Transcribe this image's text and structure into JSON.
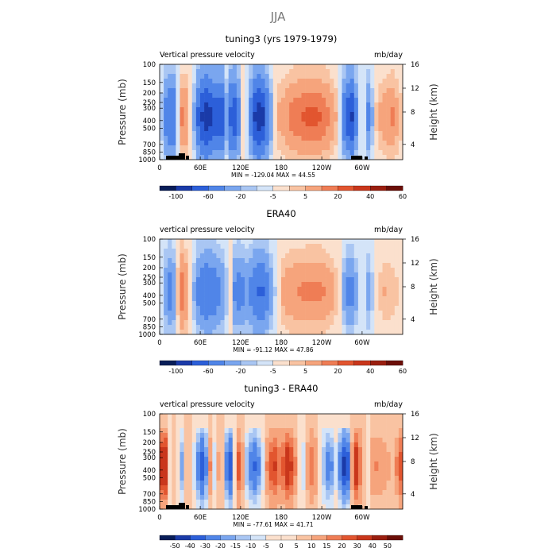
{
  "figure": {
    "suptitle": "JJA"
  },
  "chart_data": [
    {
      "type": "heatmap",
      "title": "tuning3 (yrs 1979-1979)",
      "left_label": "Vertical pressure velocity",
      "right_label": "mb/day",
      "ylabel": "Pressure (mb)",
      "y2label": "Height (km)",
      "xticks": [
        "0",
        "60E",
        "120E",
        "180",
        "120W",
        "60W"
      ],
      "yticks": [
        "100",
        "150",
        "200",
        "250",
        "300",
        "400",
        "500",
        "700",
        "850",
        "1000"
      ],
      "y2ticks": [
        "4",
        "8",
        "12",
        "16"
      ],
      "stats": "MIN = -129.04   MAX =  44.55",
      "colorbar": [
        "-100",
        "-60",
        "-20",
        "-5",
        "5",
        "20",
        "40",
        "60"
      ],
      "lon_structure": [
        {
          "lon": 0,
          "v": 4
        },
        {
          "lon": 8,
          "v": -25
        },
        {
          "lon": 20,
          "v": -40
        },
        {
          "lon": 28,
          "v": 5
        },
        {
          "lon": 36,
          "v": 28
        },
        {
          "lon": 42,
          "v": 8
        },
        {
          "lon": 50,
          "v": -6
        },
        {
          "lon": 58,
          "v": -45
        },
        {
          "lon": 70,
          "v": -70
        },
        {
          "lon": 82,
          "v": -45
        },
        {
          "lon": 92,
          "v": -55
        },
        {
          "lon": 100,
          "v": -10
        },
        {
          "lon": 108,
          "v": -60
        },
        {
          "lon": 116,
          "v": -30
        },
        {
          "lon": 124,
          "v": 5
        },
        {
          "lon": 132,
          "v": -10
        },
        {
          "lon": 140,
          "v": -55
        },
        {
          "lon": 150,
          "v": -75
        },
        {
          "lon": 158,
          "v": -40
        },
        {
          "lon": 168,
          "v": -5
        },
        {
          "lon": 176,
          "v": 10
        },
        {
          "lon": 186,
          "v": 15
        },
        {
          "lon": 200,
          "v": 25
        },
        {
          "lon": 220,
          "v": 30
        },
        {
          "lon": 240,
          "v": 28
        },
        {
          "lon": 256,
          "v": 15
        },
        {
          "lon": 266,
          "v": 4
        },
        {
          "lon": 276,
          "v": -45
        },
        {
          "lon": 284,
          "v": -60
        },
        {
          "lon": 292,
          "v": -20
        },
        {
          "lon": 300,
          "v": 8
        },
        {
          "lon": 310,
          "v": -25
        },
        {
          "lon": 320,
          "v": 5
        },
        {
          "lon": 332,
          "v": 15
        },
        {
          "lon": 345,
          "v": 20
        },
        {
          "lon": 360,
          "v": 4
        }
      ]
    },
    {
      "type": "heatmap",
      "title": "ERA40",
      "left_label": "vertical pressure velocity",
      "right_label": "mb/day",
      "ylabel": "Pressure (mb)",
      "y2label": "Height (km)",
      "xticks": [
        "0",
        "60E",
        "120E",
        "180",
        "120W",
        "60W"
      ],
      "yticks": [
        "100",
        "150",
        "200",
        "250",
        "300",
        "400",
        "500",
        "700",
        "850",
        "1000"
      ],
      "y2ticks": [
        "4",
        "8",
        "12",
        "16"
      ],
      "stats": "MIN = -91.12   MAX =  47.86",
      "colorbar": [
        "-100",
        "-60",
        "-20",
        "-5",
        "5",
        "20",
        "40",
        "60"
      ],
      "lon_structure": [
        {
          "lon": 0,
          "v": 4
        },
        {
          "lon": 8,
          "v": -15
        },
        {
          "lon": 18,
          "v": -30
        },
        {
          "lon": 26,
          "v": 5
        },
        {
          "lon": 34,
          "v": 30
        },
        {
          "lon": 42,
          "v": 10
        },
        {
          "lon": 50,
          "v": -8
        },
        {
          "lon": 60,
          "v": -30
        },
        {
          "lon": 72,
          "v": -35
        },
        {
          "lon": 84,
          "v": -25
        },
        {
          "lon": 96,
          "v": -15
        },
        {
          "lon": 104,
          "v": 6
        },
        {
          "lon": 110,
          "v": -20
        },
        {
          "lon": 120,
          "v": -25
        },
        {
          "lon": 132,
          "v": -15
        },
        {
          "lon": 142,
          "v": -35
        },
        {
          "lon": 152,
          "v": -40
        },
        {
          "lon": 162,
          "v": -20
        },
        {
          "lon": 172,
          "v": -3
        },
        {
          "lon": 184,
          "v": 12
        },
        {
          "lon": 200,
          "v": 18
        },
        {
          "lon": 220,
          "v": 20
        },
        {
          "lon": 240,
          "v": 20
        },
        {
          "lon": 256,
          "v": 12
        },
        {
          "lon": 266,
          "v": 4
        },
        {
          "lon": 276,
          "v": -20
        },
        {
          "lon": 284,
          "v": -25
        },
        {
          "lon": 292,
          "v": -10
        },
        {
          "lon": 300,
          "v": 5
        },
        {
          "lon": 310,
          "v": -15
        },
        {
          "lon": 320,
          "v": 3
        },
        {
          "lon": 334,
          "v": 10
        },
        {
          "lon": 348,
          "v": 6
        },
        {
          "lon": 360,
          "v": 4
        }
      ]
    },
    {
      "type": "heatmap",
      "title": "tuning3 - ERA40",
      "left_label": "vertical pressure velocity",
      "right_label": "mb/day",
      "ylabel": "Pressure (mb)",
      "y2label": "Height (km)",
      "xticks": [
        "0",
        "60E",
        "120E",
        "180",
        "120W",
        "60W"
      ],
      "yticks": [
        "100",
        "150",
        "200",
        "250",
        "300",
        "400",
        "500",
        "700",
        "850",
        "1000"
      ],
      "y2ticks": [
        "4",
        "8",
        "12",
        "16"
      ],
      "stats": "MIN = -77.61   MAX =  41.71",
      "colorbar": [
        "-50",
        "-40",
        "-30",
        "-20",
        "-15",
        "-10",
        "-5",
        "0",
        "5",
        "10",
        "15",
        "20",
        "30",
        "40",
        "50"
      ],
      "lon_structure": [
        {
          "lon": 0,
          "v": 20
        },
        {
          "lon": 8,
          "v": 30
        },
        {
          "lon": 16,
          "v": -8
        },
        {
          "lon": 24,
          "v": 10
        },
        {
          "lon": 32,
          "v": -20
        },
        {
          "lon": 40,
          "v": 8
        },
        {
          "lon": 50,
          "v": -5
        },
        {
          "lon": 58,
          "v": -25
        },
        {
          "lon": 66,
          "v": -40
        },
        {
          "lon": 74,
          "v": 12
        },
        {
          "lon": 82,
          "v": -10
        },
        {
          "lon": 90,
          "v": 15
        },
        {
          "lon": 98,
          "v": -20
        },
        {
          "lon": 106,
          "v": -35
        },
        {
          "lon": 114,
          "v": 20
        },
        {
          "lon": 122,
          "v": 10
        },
        {
          "lon": 130,
          "v": -15
        },
        {
          "lon": 140,
          "v": -30
        },
        {
          "lon": 150,
          "v": -15
        },
        {
          "lon": 160,
          "v": 12
        },
        {
          "lon": 170,
          "v": 20
        },
        {
          "lon": 180,
          "v": 10
        },
        {
          "lon": 190,
          "v": 25
        },
        {
          "lon": 200,
          "v": 12
        },
        {
          "lon": 212,
          "v": -10
        },
        {
          "lon": 222,
          "v": 15
        },
        {
          "lon": 232,
          "v": 8
        },
        {
          "lon": 242,
          "v": -12
        },
        {
          "lon": 252,
          "v": -25
        },
        {
          "lon": 262,
          "v": -5
        },
        {
          "lon": 272,
          "v": -40
        },
        {
          "lon": 280,
          "v": -30
        },
        {
          "lon": 288,
          "v": 30
        },
        {
          "lon": 296,
          "v": 15
        },
        {
          "lon": 306,
          "v": -5
        },
        {
          "lon": 316,
          "v": 10
        },
        {
          "lon": 330,
          "v": 8
        },
        {
          "lon": 346,
          "v": 4
        },
        {
          "lon": 360,
          "v": 20
        }
      ]
    }
  ],
  "colors": {
    "colorbar_fills": [
      "#081d58",
      "#1a3aa8",
      "#2c5fd9",
      "#5085e8",
      "#7aa6ef",
      "#a9c6f3",
      "#d4e4f8",
      "#fbe0cd",
      "#f9c3a2",
      "#f6a47c",
      "#ef7d55",
      "#e2552f",
      "#c9361b",
      "#9a1e0f",
      "#6b0e07"
    ]
  }
}
